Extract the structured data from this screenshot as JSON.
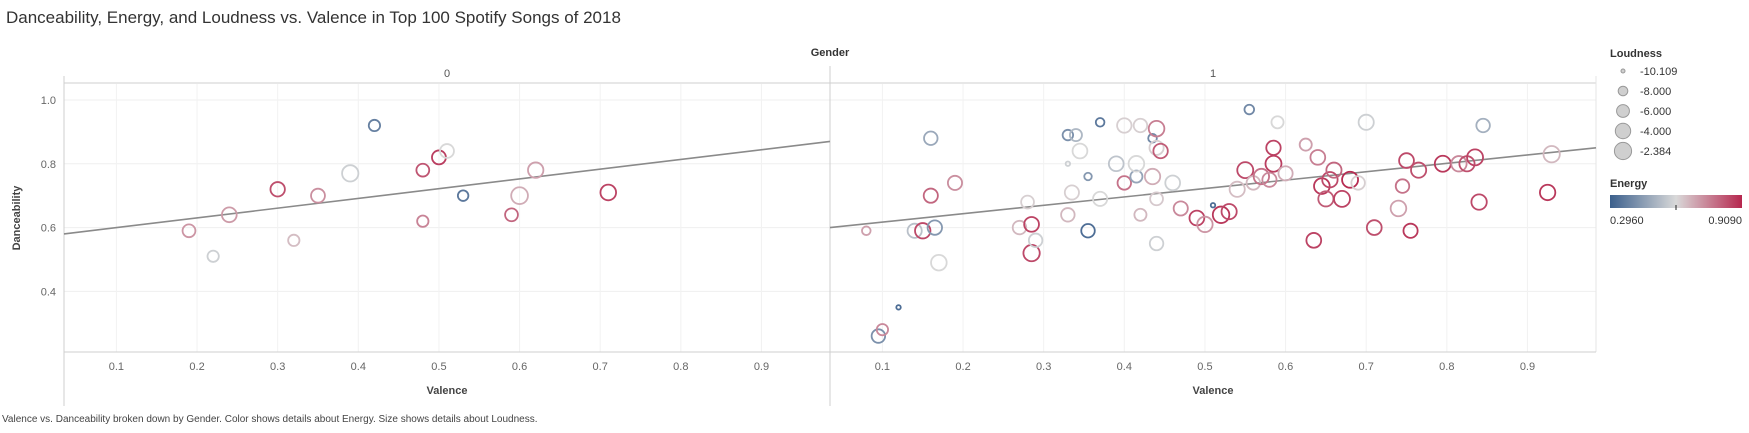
{
  "title": "Danceability, Energy, and Loudness vs. Valence in Top 100 Spotify Songs of 2018",
  "caption": "Valence vs. Danceability broken down by Gender.  Color shows details about Energy.  Size shows details about Loudness.",
  "chart_data": {
    "type": "scatter",
    "facet_title": "Gender",
    "facets": [
      "0",
      "1"
    ],
    "xlabel": "Valence",
    "ylabel": "Danceability",
    "xlim": [
      0.035,
      0.985
    ],
    "ylim": [
      0.21,
      1.05
    ],
    "xticks": [
      "0.1",
      "0.2",
      "0.3",
      "0.4",
      "0.5",
      "0.6",
      "0.7",
      "0.8",
      "0.9"
    ],
    "yticks": [
      "0.4",
      "0.6",
      "0.8",
      "1.0"
    ],
    "grid": true,
    "trend_lines": [
      {
        "facet": "0",
        "x0": 0.035,
        "y0": 0.58,
        "x1": 0.985,
        "y1": 0.87
      },
      {
        "facet": "1",
        "x0": 0.035,
        "y0": 0.6,
        "x1": 0.985,
        "y1": 0.85
      }
    ],
    "size_legend": {
      "title": "Loudness",
      "labels": [
        "-10.109",
        "-8.000",
        "-6.000",
        "-4.000",
        "-2.384"
      ],
      "values": [
        -10.109,
        -8.0,
        -6.0,
        -4.0,
        -2.384
      ]
    },
    "color_legend": {
      "title": "Energy",
      "min_label": "0.2960",
      "max_label": "0.9090",
      "min": 0.296,
      "max": 0.909,
      "low_color": "#3b5f8c",
      "mid_color": "#d9d9d9",
      "high_color": "#b6274e"
    },
    "series": [
      {
        "facet": "0",
        "points": [
          {
            "x": 0.19,
            "y": 0.59,
            "energy": 0.72,
            "loudness": -6.0
          },
          {
            "x": 0.22,
            "y": 0.51,
            "energy": 0.58,
            "loudness": -7.0
          },
          {
            "x": 0.24,
            "y": 0.64,
            "energy": 0.71,
            "loudness": -4.5
          },
          {
            "x": 0.3,
            "y": 0.72,
            "energy": 0.84,
            "loudness": -4.8
          },
          {
            "x": 0.32,
            "y": 0.56,
            "energy": 0.65,
            "loudness": -7.0
          },
          {
            "x": 0.35,
            "y": 0.7,
            "energy": 0.73,
            "loudness": -5.2
          },
          {
            "x": 0.39,
            "y": 0.77,
            "energy": 0.58,
            "loudness": -3.2
          },
          {
            "x": 0.42,
            "y": 0.92,
            "energy": 0.38,
            "loudness": -7.0
          },
          {
            "x": 0.48,
            "y": 0.78,
            "energy": 0.83,
            "loudness": -6.0
          },
          {
            "x": 0.48,
            "y": 0.62,
            "energy": 0.75,
            "loudness": -7.0
          },
          {
            "x": 0.5,
            "y": 0.82,
            "energy": 0.87,
            "loudness": -5.2
          },
          {
            "x": 0.51,
            "y": 0.84,
            "energy": 0.6,
            "loudness": -5.2
          },
          {
            "x": 0.53,
            "y": 0.7,
            "energy": 0.36,
            "loudness": -7.5
          },
          {
            "x": 0.59,
            "y": 0.64,
            "energy": 0.8,
            "loudness": -6.0
          },
          {
            "x": 0.6,
            "y": 0.7,
            "energy": 0.68,
            "loudness": -2.8
          },
          {
            "x": 0.62,
            "y": 0.78,
            "energy": 0.7,
            "loudness": -4.0
          },
          {
            "x": 0.71,
            "y": 0.71,
            "energy": 0.86,
            "loudness": -3.8
          }
        ]
      },
      {
        "facet": "1",
        "points": [
          {
            "x": 0.08,
            "y": 0.59,
            "energy": 0.7,
            "loudness": -8.5
          },
          {
            "x": 0.095,
            "y": 0.26,
            "energy": 0.42,
            "loudness": -5.5
          },
          {
            "x": 0.1,
            "y": 0.28,
            "energy": 0.74,
            "loudness": -7.0
          },
          {
            "x": 0.12,
            "y": 0.35,
            "energy": 0.33,
            "loudness": -10.0
          },
          {
            "x": 0.14,
            "y": 0.59,
            "energy": 0.54,
            "loudness": -5.0
          },
          {
            "x": 0.15,
            "y": 0.59,
            "energy": 0.85,
            "loudness": -4.0
          },
          {
            "x": 0.16,
            "y": 0.88,
            "energy": 0.48,
            "loudness": -5.5
          },
          {
            "x": 0.16,
            "y": 0.7,
            "energy": 0.8,
            "loudness": -5.0
          },
          {
            "x": 0.165,
            "y": 0.6,
            "energy": 0.44,
            "loudness": -4.8
          },
          {
            "x": 0.17,
            "y": 0.49,
            "energy": 0.6,
            "loudness": -3.8
          },
          {
            "x": 0.19,
            "y": 0.74,
            "energy": 0.73,
            "loudness": -5.0
          },
          {
            "x": 0.27,
            "y": 0.6,
            "energy": 0.66,
            "loudness": -5.5
          },
          {
            "x": 0.28,
            "y": 0.68,
            "energy": 0.62,
            "loudness": -6.0
          },
          {
            "x": 0.285,
            "y": 0.61,
            "energy": 0.86,
            "loudness": -4.5
          },
          {
            "x": 0.285,
            "y": 0.52,
            "energy": 0.85,
            "loudness": -3.2
          },
          {
            "x": 0.29,
            "y": 0.56,
            "energy": 0.58,
            "loudness": -5.5
          },
          {
            "x": 0.33,
            "y": 0.8,
            "energy": 0.58,
            "loudness": -10.0
          },
          {
            "x": 0.33,
            "y": 0.89,
            "energy": 0.42,
            "loudness": -7.5
          },
          {
            "x": 0.33,
            "y": 0.64,
            "energy": 0.66,
            "loudness": -5.5
          },
          {
            "x": 0.335,
            "y": 0.71,
            "energy": 0.62,
            "loudness": -5.0
          },
          {
            "x": 0.34,
            "y": 0.89,
            "energy": 0.52,
            "loudness": -6.5
          },
          {
            "x": 0.345,
            "y": 0.84,
            "energy": 0.6,
            "loudness": -4.5
          },
          {
            "x": 0.355,
            "y": 0.76,
            "energy": 0.44,
            "loudness": -9.0
          },
          {
            "x": 0.355,
            "y": 0.59,
            "energy": 0.33,
            "loudness": -5.5
          },
          {
            "x": 0.37,
            "y": 0.93,
            "energy": 0.36,
            "loudness": -8.5
          },
          {
            "x": 0.37,
            "y": 0.69,
            "energy": 0.6,
            "loudness": -5.0
          },
          {
            "x": 0.39,
            "y": 0.8,
            "energy": 0.55,
            "loudness": -4.5
          },
          {
            "x": 0.4,
            "y": 0.74,
            "energy": 0.78,
            "loudness": -5.5
          },
          {
            "x": 0.4,
            "y": 0.92,
            "energy": 0.62,
            "loudness": -4.8
          },
          {
            "x": 0.415,
            "y": 0.76,
            "energy": 0.47,
            "loudness": -6.5
          },
          {
            "x": 0.415,
            "y": 0.8,
            "energy": 0.6,
            "loudness": -3.8
          },
          {
            "x": 0.42,
            "y": 0.64,
            "energy": 0.66,
            "loudness": -6.5
          },
          {
            "x": 0.42,
            "y": 0.92,
            "energy": 0.62,
            "loudness": -5.5
          },
          {
            "x": 0.435,
            "y": 0.88,
            "energy": 0.4,
            "loudness": -8.5
          },
          {
            "x": 0.435,
            "y": 0.76,
            "energy": 0.68,
            "loudness": -4.0
          },
          {
            "x": 0.44,
            "y": 0.91,
            "energy": 0.76,
            "loudness": -3.8
          },
          {
            "x": 0.44,
            "y": 0.85,
            "energy": 0.62,
            "loudness": -5.0
          },
          {
            "x": 0.445,
            "y": 0.84,
            "energy": 0.82,
            "loudness": -4.8
          },
          {
            "x": 0.44,
            "y": 0.55,
            "energy": 0.58,
            "loudness": -5.5
          },
          {
            "x": 0.44,
            "y": 0.69,
            "energy": 0.63,
            "loudness": -6.0
          },
          {
            "x": 0.46,
            "y": 0.74,
            "energy": 0.58,
            "loudness": -4.5
          },
          {
            "x": 0.47,
            "y": 0.66,
            "energy": 0.74,
            "loudness": -5.0
          },
          {
            "x": 0.49,
            "y": 0.63,
            "energy": 0.86,
            "loudness": -4.5
          },
          {
            "x": 0.5,
            "y": 0.61,
            "energy": 0.72,
            "loudness": -4.0
          },
          {
            "x": 0.51,
            "y": 0.67,
            "energy": 0.33,
            "loudness": -10.0
          },
          {
            "x": 0.52,
            "y": 0.64,
            "energy": 0.88,
            "loudness": -3.0
          },
          {
            "x": 0.53,
            "y": 0.65,
            "energy": 0.85,
            "loudness": -4.2
          },
          {
            "x": 0.54,
            "y": 0.72,
            "energy": 0.65,
            "loudness": -4.2
          },
          {
            "x": 0.55,
            "y": 0.78,
            "energy": 0.85,
            "loudness": -3.5
          },
          {
            "x": 0.555,
            "y": 0.97,
            "energy": 0.4,
            "loudness": -8.0
          },
          {
            "x": 0.56,
            "y": 0.74,
            "energy": 0.66,
            "loudness": -5.5
          },
          {
            "x": 0.57,
            "y": 0.76,
            "energy": 0.78,
            "loudness": -4.0
          },
          {
            "x": 0.58,
            "y": 0.75,
            "energy": 0.74,
            "loudness": -5.0
          },
          {
            "x": 0.585,
            "y": 0.85,
            "energy": 0.86,
            "loudness": -4.8
          },
          {
            "x": 0.585,
            "y": 0.8,
            "energy": 0.87,
            "loudness": -3.5
          },
          {
            "x": 0.59,
            "y": 0.93,
            "energy": 0.6,
            "loudness": -6.5
          },
          {
            "x": 0.6,
            "y": 0.77,
            "energy": 0.68,
            "loudness": -5.0
          },
          {
            "x": 0.625,
            "y": 0.86,
            "energy": 0.7,
            "loudness": -6.5
          },
          {
            "x": 0.635,
            "y": 0.56,
            "energy": 0.86,
            "loudness": -4.5
          },
          {
            "x": 0.64,
            "y": 0.82,
            "energy": 0.76,
            "loudness": -4.5
          },
          {
            "x": 0.645,
            "y": 0.73,
            "energy": 0.88,
            "loudness": -3.8
          },
          {
            "x": 0.65,
            "y": 0.69,
            "energy": 0.82,
            "loudness": -4.2
          },
          {
            "x": 0.655,
            "y": 0.75,
            "energy": 0.85,
            "loudness": -4.0
          },
          {
            "x": 0.66,
            "y": 0.78,
            "energy": 0.8,
            "loudness": -4.2
          },
          {
            "x": 0.67,
            "y": 0.69,
            "energy": 0.86,
            "loudness": -3.5
          },
          {
            "x": 0.68,
            "y": 0.75,
            "energy": 0.9,
            "loudness": -3.5
          },
          {
            "x": 0.69,
            "y": 0.74,
            "energy": 0.62,
            "loudness": -5.5
          },
          {
            "x": 0.7,
            "y": 0.93,
            "energy": 0.58,
            "loudness": -4.2
          },
          {
            "x": 0.71,
            "y": 0.6,
            "energy": 0.84,
            "loudness": -4.5
          },
          {
            "x": 0.74,
            "y": 0.66,
            "energy": 0.7,
            "loudness": -3.8
          },
          {
            "x": 0.745,
            "y": 0.73,
            "energy": 0.78,
            "loudness": -5.5
          },
          {
            "x": 0.75,
            "y": 0.81,
            "energy": 0.85,
            "loudness": -4.5
          },
          {
            "x": 0.755,
            "y": 0.59,
            "energy": 0.88,
            "loudness": -5.0
          },
          {
            "x": 0.765,
            "y": 0.78,
            "energy": 0.84,
            "loudness": -4.2
          },
          {
            "x": 0.795,
            "y": 0.8,
            "energy": 0.88,
            "loudness": -3.5
          },
          {
            "x": 0.815,
            "y": 0.8,
            "energy": 0.74,
            "loudness": -4.0
          },
          {
            "x": 0.825,
            "y": 0.8,
            "energy": 0.84,
            "loudness": -4.2
          },
          {
            "x": 0.835,
            "y": 0.82,
            "energy": 0.86,
            "loudness": -3.5
          },
          {
            "x": 0.84,
            "y": 0.68,
            "energy": 0.85,
            "loudness": -4.0
          },
          {
            "x": 0.845,
            "y": 0.92,
            "energy": 0.5,
            "loudness": -5.5
          },
          {
            "x": 0.925,
            "y": 0.71,
            "energy": 0.88,
            "loudness": -4.0
          },
          {
            "x": 0.93,
            "y": 0.83,
            "energy": 0.66,
            "loudness": -3.2
          }
        ]
      }
    ]
  }
}
